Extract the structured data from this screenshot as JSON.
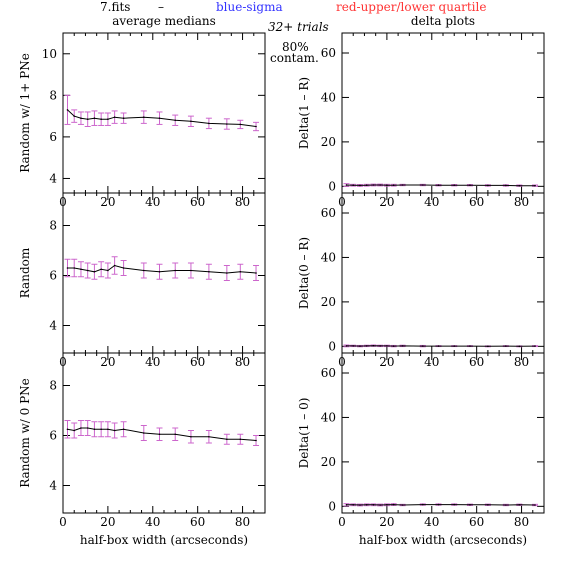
{
  "header": {
    "file": "7.fits",
    "dash": "–",
    "blue_label": "blue-sigma",
    "red_label": "red-upper/lower quartile",
    "trials": "32+ trials",
    "percent": "80%",
    "contam": "contam."
  },
  "colors": {
    "line": "#000000",
    "sigma": "#3333ff",
    "quartile": "#ff3333",
    "errbar": "#cc66cc"
  },
  "chart_data": [
    {
      "type": "line",
      "panel": "left-top",
      "title": "average medians",
      "ylabel": "Random w/ 1+ PNe",
      "xlabel": "",
      "xlim": [
        0,
        90
      ],
      "ylim": [
        3.3,
        11
      ],
      "xticks": [
        0,
        20,
        40,
        60,
        80
      ],
      "yticks": [
        4,
        6,
        8,
        10
      ],
      "x": [
        2,
        5,
        8,
        11,
        14,
        17,
        20,
        23,
        27,
        36,
        43,
        50,
        57,
        65,
        73,
        79,
        86
      ],
      "values": [
        7.3,
        7.0,
        6.9,
        6.85,
        6.9,
        6.85,
        6.85,
        6.95,
        6.9,
        6.95,
        6.9,
        6.8,
        6.75,
        6.65,
        6.62,
        6.6,
        6.5
      ],
      "err": [
        0.7,
        0.3,
        0.3,
        0.35,
        0.35,
        0.3,
        0.3,
        0.3,
        0.25,
        0.3,
        0.3,
        0.25,
        0.25,
        0.25,
        0.25,
        0.2,
        0.2
      ]
    },
    {
      "type": "line",
      "panel": "right-top",
      "title": "delta plots",
      "ylabel": "Delta(1 – R)",
      "xlabel": "",
      "xlim": [
        0,
        90
      ],
      "ylim": [
        -3,
        69
      ],
      "xticks": [
        0,
        20,
        40,
        60,
        80
      ],
      "yticks": [
        0,
        20,
        40,
        60
      ],
      "x": [
        2,
        5,
        8,
        11,
        14,
        17,
        20,
        23,
        27,
        36,
        43,
        50,
        57,
        65,
        73,
        79,
        86
      ],
      "values": [
        0.6,
        0.5,
        0.4,
        0.5,
        0.6,
        0.6,
        0.5,
        0.5,
        0.6,
        0.6,
        0.5,
        0.5,
        0.5,
        0.4,
        0.4,
        0.3,
        0.3
      ],
      "err": [
        0.6,
        0.4,
        0.4,
        0.4,
        0.4,
        0.4,
        0.4,
        0.4,
        0.3,
        0.3,
        0.3,
        0.3,
        0.3,
        0.3,
        0.3,
        0.3,
        0.3
      ]
    },
    {
      "type": "line",
      "panel": "left-middle",
      "title": "",
      "ylabel": "Random",
      "xlabel": "",
      "xlim": [
        0,
        90
      ],
      "ylim": [
        2.9,
        9.3
      ],
      "xticks": [
        0,
        20,
        40,
        60,
        80
      ],
      "yticks": [
        4,
        6,
        8
      ],
      "x": [
        2,
        5,
        8,
        11,
        14,
        17,
        20,
        23,
        27,
        36,
        43,
        50,
        57,
        65,
        73,
        79,
        86
      ],
      "values": [
        6.3,
        6.3,
        6.25,
        6.2,
        6.15,
        6.25,
        6.2,
        6.4,
        6.3,
        6.2,
        6.15,
        6.2,
        6.2,
        6.15,
        6.1,
        6.15,
        6.1
      ],
      "err": [
        0.35,
        0.35,
        0.3,
        0.3,
        0.3,
        0.3,
        0.3,
        0.35,
        0.3,
        0.3,
        0.3,
        0.3,
        0.3,
        0.3,
        0.3,
        0.3,
        0.3
      ]
    },
    {
      "type": "line",
      "panel": "right-middle",
      "title": "",
      "ylabel": "Delta(0 – R)",
      "xlabel": "",
      "xlim": [
        0,
        90
      ],
      "ylim": [
        -3,
        69
      ],
      "xticks": [
        0,
        20,
        40,
        60,
        80
      ],
      "yticks": [
        0,
        20,
        40,
        60
      ],
      "x": [
        2,
        5,
        8,
        11,
        14,
        17,
        20,
        23,
        27,
        36,
        43,
        50,
        57,
        65,
        73,
        79,
        86
      ],
      "values": [
        0.2,
        0.2,
        0.1,
        0.2,
        0.3,
        0.2,
        0.2,
        0.1,
        0.2,
        0.1,
        0.1,
        0.1,
        0.1,
        0.0,
        0.1,
        0.0,
        0.1
      ],
      "err": [
        0.4,
        0.3,
        0.3,
        0.3,
        0.3,
        0.3,
        0.3,
        0.3,
        0.3,
        0.3,
        0.2,
        0.2,
        0.2,
        0.2,
        0.2,
        0.2,
        0.2
      ]
    },
    {
      "type": "line",
      "panel": "left-bottom",
      "title": "",
      "ylabel": "Random w/ 0 PNe",
      "xlabel": "half-box width (arcseconds)",
      "xlim": [
        0,
        90
      ],
      "ylim": [
        2.9,
        9.3
      ],
      "xticks": [
        0,
        20,
        40,
        60,
        80
      ],
      "yticks": [
        4,
        6,
        8
      ],
      "x": [
        2,
        5,
        8,
        11,
        14,
        17,
        20,
        23,
        27,
        36,
        43,
        50,
        57,
        65,
        73,
        79,
        86
      ],
      "values": [
        6.25,
        6.2,
        6.3,
        6.3,
        6.25,
        6.25,
        6.25,
        6.2,
        6.25,
        6.1,
        6.05,
        6.05,
        5.95,
        5.95,
        5.85,
        5.85,
        5.8
      ],
      "err": [
        0.35,
        0.3,
        0.3,
        0.3,
        0.3,
        0.3,
        0.3,
        0.3,
        0.3,
        0.3,
        0.25,
        0.25,
        0.25,
        0.25,
        0.2,
        0.2,
        0.2
      ]
    },
    {
      "type": "line",
      "panel": "right-bottom",
      "title": "",
      "ylabel": "Delta(1 – 0)",
      "xlabel": "half-box width (arcseconds)",
      "xlim": [
        0,
        90
      ],
      "ylim": [
        -3,
        69
      ],
      "xticks": [
        0,
        20,
        40,
        60,
        80
      ],
      "yticks": [
        0,
        20,
        40,
        60
      ],
      "x": [
        2,
        5,
        8,
        11,
        14,
        17,
        20,
        23,
        27,
        36,
        43,
        50,
        57,
        65,
        73,
        79,
        86
      ],
      "values": [
        0.7,
        0.7,
        0.6,
        0.7,
        0.7,
        0.6,
        0.7,
        0.8,
        0.6,
        0.8,
        0.8,
        0.8,
        0.7,
        0.7,
        0.6,
        0.7,
        0.6
      ],
      "err": [
        0.5,
        0.4,
        0.4,
        0.4,
        0.4,
        0.4,
        0.4,
        0.4,
        0.3,
        0.3,
        0.3,
        0.3,
        0.3,
        0.3,
        0.3,
        0.3,
        0.3
      ]
    }
  ]
}
